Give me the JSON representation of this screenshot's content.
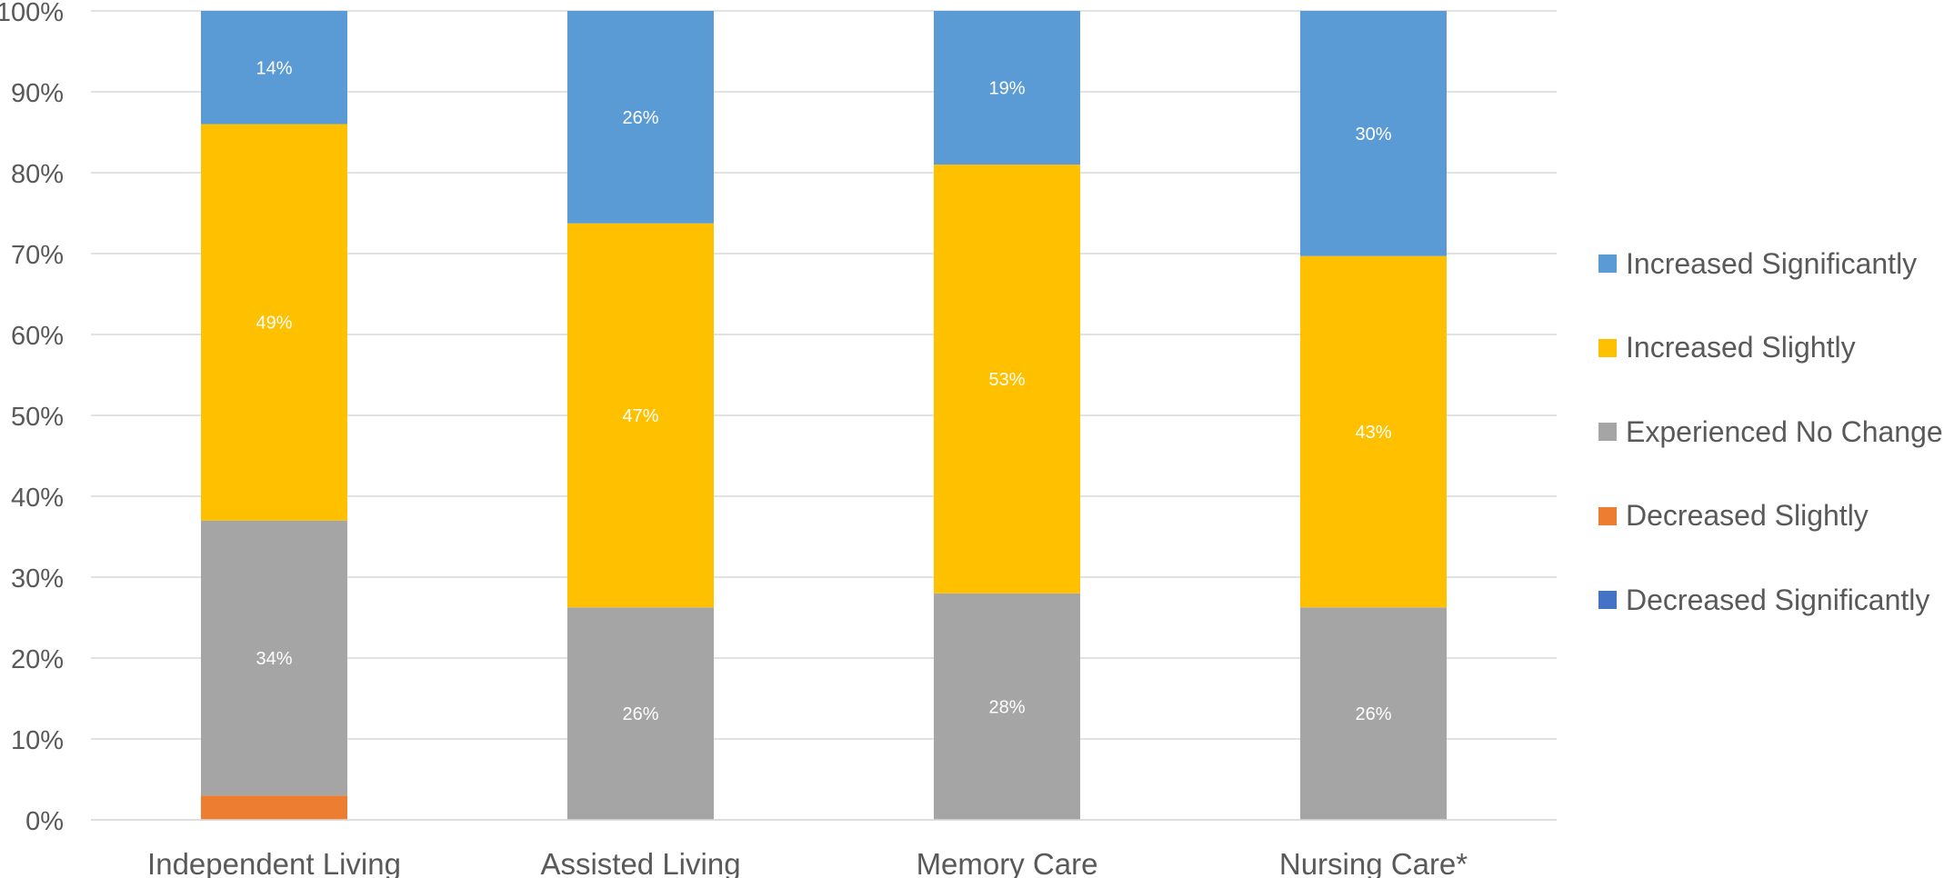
{
  "chart_data": {
    "type": "bar",
    "stacked": true,
    "percent_stacked": true,
    "categories": [
      "Independent Living",
      "Assisted Living",
      "Memory Care",
      "Nursing Care*"
    ],
    "series": [
      {
        "name": "Decreased Significantly",
        "color": "#4472C4",
        "values": [
          0,
          0,
          0,
          0
        ],
        "labels": [
          "",
          "",
          "",
          ""
        ]
      },
      {
        "name": "Decreased Slightly",
        "color": "#ED7D31",
        "values": [
          3,
          0,
          0,
          0
        ],
        "labels": [
          "",
          "",
          "",
          ""
        ]
      },
      {
        "name": "Experienced No Change",
        "color": "#A5A5A5",
        "values": [
          34,
          26,
          28,
          26
        ],
        "labels": [
          "34%",
          "26%",
          "28%",
          "26%"
        ]
      },
      {
        "name": "Increased Slightly",
        "color": "#FFC000",
        "values": [
          49,
          47,
          53,
          43
        ],
        "labels": [
          "49%",
          "47%",
          "53%",
          "43%"
        ]
      },
      {
        "name": "Increased Significantly",
        "color": "#5B9BD5",
        "values": [
          14,
          26,
          19,
          30
        ],
        "labels": [
          "14%",
          "26%",
          "19%",
          "30%"
        ]
      }
    ],
    "legend_order": [
      "Increased Significantly",
      "Increased Slightly",
      "Experienced No Change",
      "Decreased Slightly",
      "Decreased Significantly"
    ],
    "y_ticks": [
      "0%",
      "10%",
      "20%",
      "30%",
      "40%",
      "50%",
      "60%",
      "70%",
      "80%",
      "90%",
      "100%"
    ],
    "ylim": [
      0,
      100
    ],
    "title": "",
    "xlabel": "",
    "ylabel": "",
    "grid": true,
    "legend_position": "right"
  }
}
